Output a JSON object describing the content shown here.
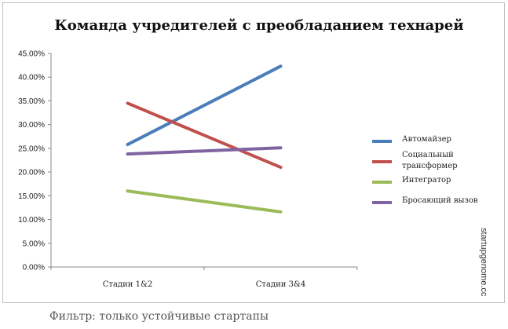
{
  "chart_data": {
    "type": "line",
    "title": "Команда учредителей с преобладанием технарей",
    "categories": [
      "Стадии 1&2",
      "Стадии 3&4"
    ],
    "y_ticks": [
      "0.00%",
      "5.00%",
      "10.00%",
      "15.00%",
      "20.00%",
      "25.00%",
      "30.00%",
      "35.00%",
      "40.00%",
      "45.00%"
    ],
    "ylim": [
      0,
      45
    ],
    "y_unit": "%",
    "grid": false,
    "legend_position": "right",
    "series": [
      {
        "name": "Автомайзер",
        "values": [
          25.8,
          42.3
        ],
        "color": "#4a7ebb"
      },
      {
        "name": "Социальный трансформер",
        "values": [
          34.5,
          21.0
        ],
        "color": "#c0504d"
      },
      {
        "name": "Интегратор",
        "values": [
          16.0,
          11.6
        ],
        "color": "#9bbb59"
      },
      {
        "name": "Бросающий вызов",
        "values": [
          23.8,
          25.1
        ],
        "color": "#8064a2"
      }
    ]
  },
  "watermark": "startupgenome.cc",
  "caption": "Фильтр: только устойчивые стартапы"
}
